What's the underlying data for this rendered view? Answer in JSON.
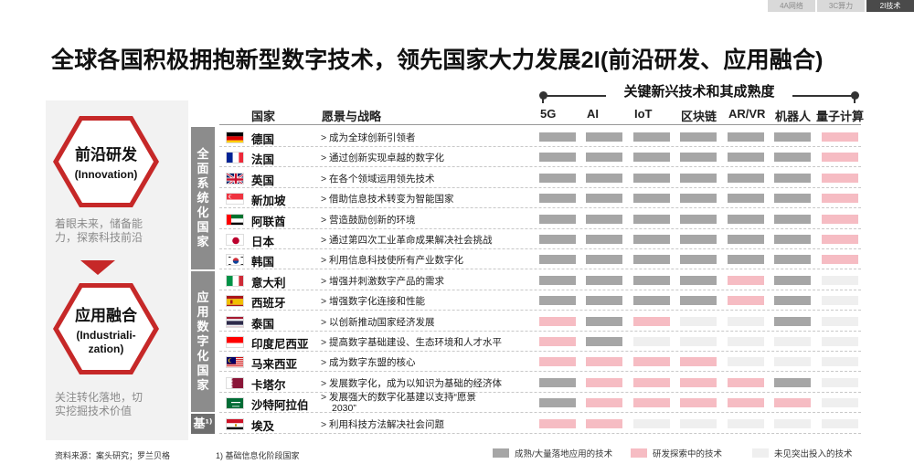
{
  "tabs": [
    {
      "label": "4A网络",
      "active": false
    },
    {
      "label": "3C算力",
      "active": false
    },
    {
      "label": "2I技术",
      "active": true
    }
  ],
  "title": "全球各国积极拥抱新型数字技术，领先国家大力发展2I(前沿研发、应用融合)",
  "tech_header": "关键新兴技术和其成熟度",
  "innovation": {
    "title": "前沿研发",
    "subtitle": "(Innovation)",
    "desc_line1": "着眼未来，储备能",
    "desc_line2": "力，探索科技前沿"
  },
  "industrialization": {
    "title": "应用融合",
    "subtitle_line1": "(Industriali-",
    "subtitle_line2": "zation)",
    "desc_line1": "关注转化落地，切",
    "desc_line2": "实挖掘技术价值"
  },
  "groups": {
    "full": "全面系统化国家",
    "applied": "应用数字化国家",
    "base": "基¹⁾"
  },
  "table_headers": {
    "country": "国家",
    "vision": "愿景与战略"
  },
  "techs": [
    "5G",
    "AI",
    "IoT",
    "区块链",
    "AR/VR",
    "机器人",
    "量子计算"
  ],
  "colors": {
    "mature": "#a6a6a6",
    "developing": "#f6bcc3",
    "none": "#efefef",
    "accent": "#c62828"
  },
  "rows": [
    {
      "flag": "flag-germany",
      "country": "德国",
      "vision": "> 成为全球创新引领者",
      "levels": [
        "mature",
        "mature",
        "mature",
        "mature",
        "mature",
        "mature",
        "developing"
      ]
    },
    {
      "flag": "flag-france",
      "country": "法国",
      "vision": "> 通过创新实现卓越的数字化",
      "levels": [
        "mature",
        "mature",
        "mature",
        "mature",
        "mature",
        "mature",
        "developing"
      ]
    },
    {
      "flag": "flag-uk",
      "country": "英国",
      "vision": "> 在各个领域运用领先技术",
      "levels": [
        "mature",
        "mature",
        "mature",
        "mature",
        "mature",
        "mature",
        "developing"
      ]
    },
    {
      "flag": "flag-singapore",
      "country": "新加坡",
      "vision": "> 借助信息技术转变为智能国家",
      "levels": [
        "mature",
        "mature",
        "mature",
        "mature",
        "mature",
        "mature",
        "developing"
      ]
    },
    {
      "flag": "flag-uae",
      "country": "阿联酋",
      "vision": "> 营造鼓励创新的环境",
      "levels": [
        "mature",
        "mature",
        "mature",
        "mature",
        "mature",
        "mature",
        "developing"
      ]
    },
    {
      "flag": "flag-japan",
      "country": "日本",
      "vision": "> 通过第四次工业革命成果解决社会挑战",
      "levels": [
        "mature",
        "mature",
        "mature",
        "mature",
        "mature",
        "mature",
        "developing"
      ]
    },
    {
      "flag": "flag-korea",
      "country": "韩国",
      "vision": "> 利用信息科技使所有产业数字化",
      "levels": [
        "mature",
        "mature",
        "mature",
        "mature",
        "mature",
        "mature",
        "developing"
      ]
    },
    {
      "flag": "flag-italy",
      "country": "意大利",
      "vision": "> 增强并刺激数字产品的需求",
      "levels": [
        "mature",
        "mature",
        "mature",
        "mature",
        "developing",
        "mature",
        "none"
      ]
    },
    {
      "flag": "flag-spain",
      "country": "西班牙",
      "vision": "> 增强数字化连接和性能",
      "levels": [
        "mature",
        "mature",
        "mature",
        "mature",
        "developing",
        "mature",
        "none"
      ]
    },
    {
      "flag": "flag-thailand",
      "country": "泰国",
      "vision": "> 以创新推动国家经济发展",
      "levels": [
        "developing",
        "mature",
        "developing",
        "none",
        "none",
        "mature",
        "none"
      ]
    },
    {
      "flag": "flag-indonesia",
      "country": "印度尼西亚",
      "vision": "> 提高数字基础建设、生态环境和人才水平",
      "levels": [
        "developing",
        "mature",
        "none",
        "none",
        "none",
        "none",
        "none"
      ]
    },
    {
      "flag": "flag-malaysia",
      "country": "马来西亚",
      "vision": "> 成为数字东盟的核心",
      "levels": [
        "developing",
        "developing",
        "developing",
        "developing",
        "none",
        "none",
        "none"
      ]
    },
    {
      "flag": "flag-qatar",
      "country": "卡塔尔",
      "vision": "> 发展数字化，成为以知识为基础的经济体",
      "levels": [
        "mature",
        "developing",
        "developing",
        "developing",
        "developing",
        "mature",
        "none"
      ]
    },
    {
      "flag": "flag-saudi",
      "country": "沙特阿拉伯",
      "vision": "> 发展强大的数字化基建以支持“愿景",
      "vision2": "2030”",
      "levels": [
        "mature",
        "developing",
        "developing",
        "developing",
        "developing",
        "developing",
        "none"
      ]
    },
    {
      "flag": "flag-egypt",
      "country": "埃及",
      "vision": "> 利用科技方法解决社会问题",
      "levels": [
        "developing",
        "developing",
        "none",
        "none",
        "none",
        "none",
        "none"
      ]
    }
  ],
  "footer": {
    "source": "资料来源：案头研究；罗兰贝格",
    "note": "1) 基础信息化阶段国家",
    "legend_mature": "成熟/大量落地应用的技术",
    "legend_developing": "研发探索中的技术",
    "legend_none": "未见突出投入的技术"
  }
}
